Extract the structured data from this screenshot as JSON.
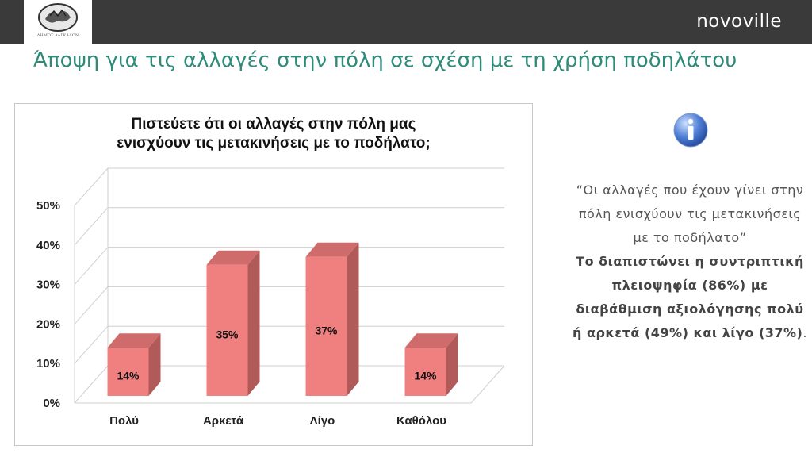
{
  "header": {
    "logo_caption": "ΔΗΜΟΣ ΛΑΓΚΑΔΩΝ",
    "brand": "novoville"
  },
  "page_title": "Άποψη για τις αλλαγές στην πόλη σε σχέση με τη χρήση ποδηλάτου",
  "chart_data": {
    "type": "bar",
    "title_line1": "Πιστεύετε ότι οι αλλαγές στην πόλη μας",
    "title_line2": "ενισχύουν τις μετακινήσεις με το ποδήλατο;",
    "categories": [
      "Πολύ",
      "Αρκετά",
      "Λίγο",
      "Καθόλου"
    ],
    "values": [
      14,
      35,
      37,
      14
    ],
    "value_labels": [
      "14%",
      "35%",
      "37%",
      "14%"
    ],
    "y_ticks": [
      "0%",
      "10%",
      "20%",
      "30%",
      "40%",
      "50%"
    ],
    "ylim": [
      0,
      50
    ],
    "grid": true,
    "bar_color": "#f08080",
    "bar_side_color": "#b05a5a",
    "bar_top_color": "#cf6b6b"
  },
  "side_panel": {
    "icon": "info-icon",
    "quote": "“Οι αλλαγές που έχουν γίνει στην πόλη ενισχύουν τις μετακινήσεις με το ποδήλατο”",
    "bold_text": "Το διαπιστώνει η συντριπτική πλειοψηφία (86%) με διαβάθμιση αξιολόγησης πολύ ή αρκετά (49%) και λίγο  (37%)",
    "tail": "."
  }
}
